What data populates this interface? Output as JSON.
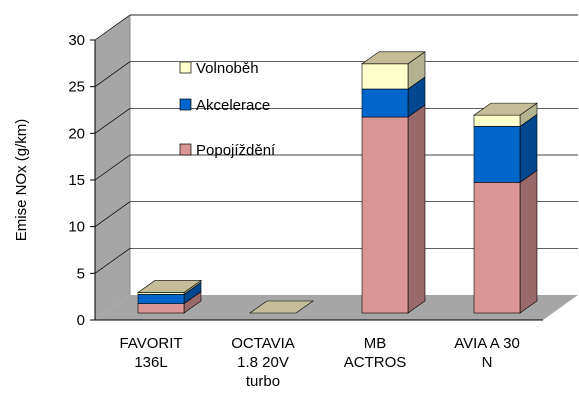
{
  "chart_data": {
    "type": "bar3d_stacked",
    "y_label": "Emise NOx (g/km)",
    "categories": [
      "FAVORIT\n136L",
      "OCTAVIA\n1.8 20V\nturbo",
      "MB\nACTROS",
      "AVIA A 30\nN"
    ],
    "series": [
      {
        "name": "Popojíždění",
        "color": "#d99694",
        "values": [
          1.0,
          0,
          21,
          14
        ]
      },
      {
        "name": "Akcelerace",
        "color": "#0066cc",
        "values": [
          1.0,
          0,
          3,
          6
        ]
      },
      {
        "name": "Volnoběh",
        "color": "#ffffcc",
        "values": [
          0.2,
          0,
          2.7,
          1.2
        ]
      }
    ],
    "top_color": "#c4bd97",
    "ylim": [
      0,
      30
    ],
    "yticks": [
      0,
      5,
      10,
      15,
      20,
      25,
      30
    ],
    "grid": true
  }
}
